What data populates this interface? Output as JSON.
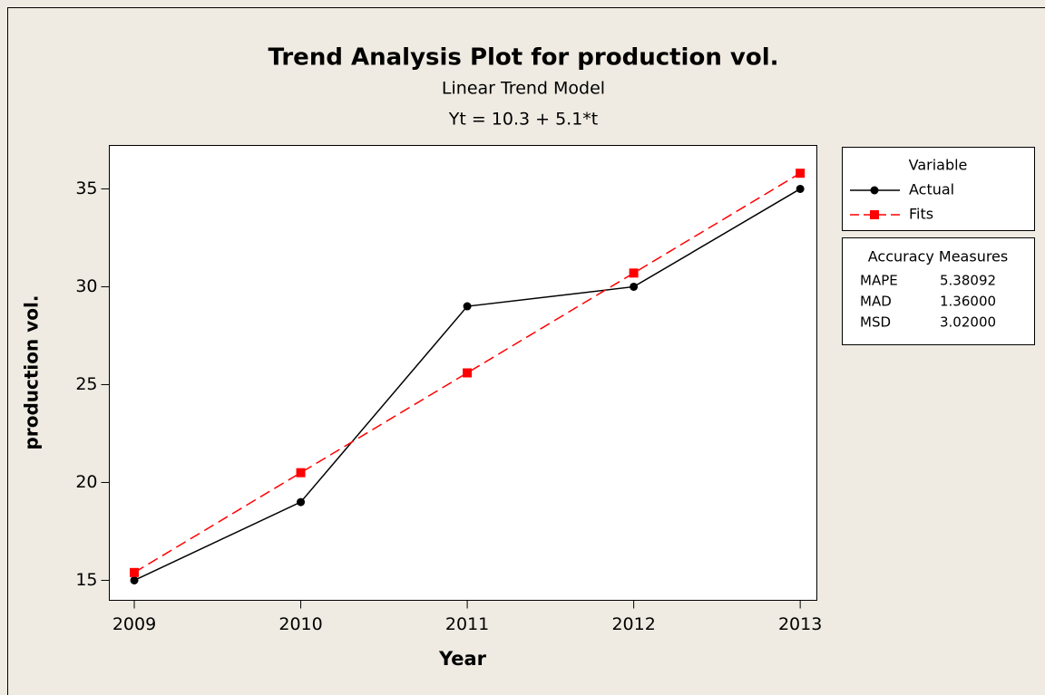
{
  "chart_data": {
    "type": "line",
    "title": "Trend Analysis Plot for production vol.",
    "subtitle": "Linear Trend Model",
    "equation": "Yt = 10.3 + 5.1*t",
    "x_label": "Year",
    "y_label": "production vol.",
    "x": [
      2009,
      2010,
      2011,
      2012,
      2013
    ],
    "xlim": [
      2008.85,
      2013.1
    ],
    "xticks": [
      2009,
      2010,
      2011,
      2012,
      2013
    ],
    "ylim": [
      13.98,
      37.22
    ],
    "yticks": [
      15,
      20,
      25,
      30,
      35
    ],
    "legend_title": "Variable",
    "series": [
      {
        "name": "Actual",
        "color": "#000000",
        "marker": "circle",
        "dash": "solid",
        "values": [
          15,
          19,
          29,
          30,
          35
        ]
      },
      {
        "name": "Fits",
        "color": "#ff0000",
        "marker": "square",
        "dash": "dashed",
        "values": [
          15.4,
          20.5,
          25.6,
          30.7,
          35.8
        ]
      }
    ],
    "accuracy": {
      "title": "Accuracy Measures",
      "rows": [
        [
          "MAPE",
          "5.38092"
        ],
        [
          "MAD",
          "1.36000"
        ],
        [
          "MSD",
          "3.02000"
        ]
      ]
    }
  }
}
